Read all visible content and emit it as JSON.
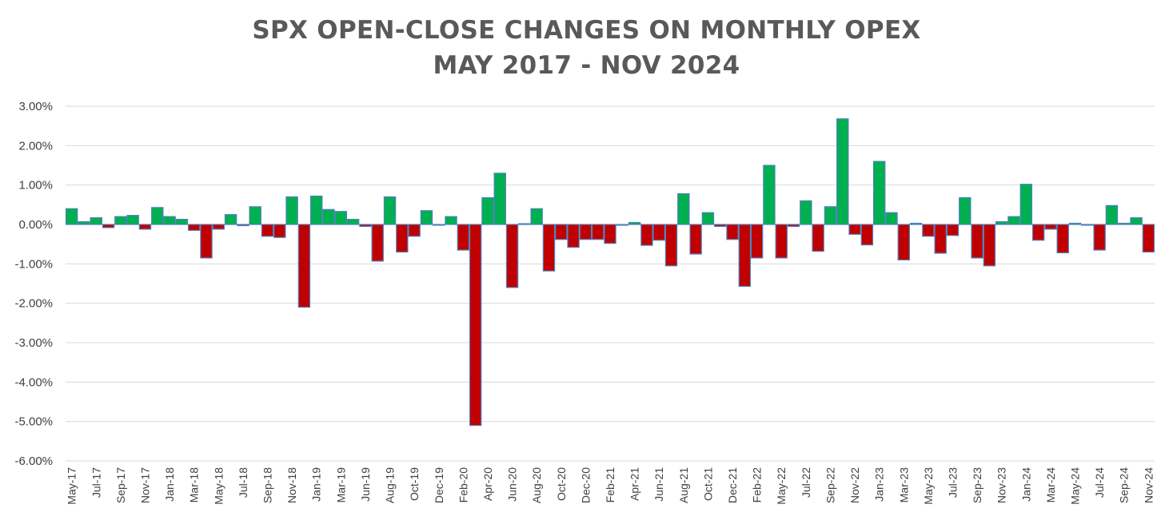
{
  "chart_data": {
    "type": "bar",
    "title": "SPX OPEN-CLOSE CHANGES ON MONTHLY OPEX",
    "subtitle": "MAY 2017 - NOV 2024",
    "xlabel": "",
    "ylabel": "",
    "ylim": [
      -0.06,
      0.03
    ],
    "y_ticks": [
      "3.00%",
      "2.00%",
      "1.00%",
      "0.00%",
      "-1.00%",
      "-2.00%",
      "-3.00%",
      "-4.00%",
      "-5.00%",
      "-6.00%"
    ],
    "grid": true,
    "legend": "none",
    "colors": {
      "positive": "#00b050",
      "negative": "#c00000",
      "bar_outline": "#4f81bd",
      "grid": "#d9d9d9",
      "text": "#404040",
      "title": "#595959"
    },
    "categories": [
      "May-17",
      "Jun-17",
      "Jul-17",
      "Aug-17",
      "Sep-17",
      "Oct-17",
      "Nov-17",
      "Dec-17",
      "Jan-18",
      "Feb-18",
      "Mar-18",
      "Apr-18",
      "May-18",
      "Jun-18",
      "Jul-18",
      "Aug-18",
      "Sep-18",
      "Oct-18",
      "Nov-18",
      "Dec-18",
      "Jan-19",
      "Feb-19",
      "Mar-19",
      "Apr-19",
      "Jun-19",
      "Jul-19",
      "Aug-19",
      "Sep-19",
      "Oct-19",
      "Nov-19",
      "Dec-19",
      "Jan-20",
      "Feb-20",
      "Mar-20",
      "Apr-20",
      "May-20",
      "Jun-20",
      "Jul-20",
      "Aug-20",
      "Sep-20",
      "Oct-20",
      "Nov-20",
      "Dec-20",
      "Jan-21",
      "Feb-21",
      "Mar-21",
      "Apr-21",
      "May-21",
      "Jun-21",
      "Jul-21",
      "Aug-21",
      "Sep-21",
      "Oct-21",
      "Nov-21",
      "Dec-21",
      "Jan-22",
      "Feb-22",
      "Mar-22",
      "May-22",
      "Jun-22",
      "Jul-22",
      "Aug-22",
      "Sep-22",
      "Oct-22",
      "Nov-22",
      "Dec-22",
      "Jan-23",
      "Feb-23",
      "Mar-23",
      "Apr-23",
      "May-23",
      "Jun-23",
      "Jul-23",
      "Aug-23",
      "Sep-23",
      "Oct-23",
      "Nov-23",
      "Dec-23",
      "Jan-24",
      "Feb-24",
      "Mar-24",
      "Apr-24",
      "May-24",
      "Jun-24",
      "Jul-24",
      "Aug-24",
      "Sep-24",
      "Oct-24",
      "Nov-24"
    ],
    "tick_labels": [
      "May-17",
      "Jul-17",
      "Sep-17",
      "Nov-17",
      "Jan-18",
      "Mar-18",
      "May-18",
      "Jul-18",
      "Sep-18",
      "Nov-18",
      "Jan-19",
      "Mar-19",
      "Jun-19",
      "Aug-19",
      "Oct-19",
      "Dec-19",
      "Feb-20",
      "Apr-20",
      "Jun-20",
      "Aug-20",
      "Oct-20",
      "Dec-20",
      "Feb-21",
      "Apr-21",
      "Jun-21",
      "Aug-21",
      "Oct-21",
      "Dec-21",
      "Feb-22",
      "May-22",
      "Jul-22",
      "Sep-22",
      "Nov-22",
      "Jan-23",
      "Mar-23",
      "May-23",
      "Jul-23",
      "Sep-23",
      "Nov-23",
      "Jan-24",
      "Mar-24",
      "May-24",
      "Jul-24",
      "Sep-24",
      "Nov-24"
    ],
    "values": [
      0.004,
      0.0007,
      0.0017,
      -0.0008,
      0.002,
      0.0023,
      -0.0012,
      0.0043,
      0.002,
      0.0013,
      -0.0015,
      -0.0085,
      -0.0012,
      0.0025,
      -0.0003,
      0.0045,
      -0.003,
      -0.0033,
      0.007,
      -0.021,
      0.0072,
      0.0038,
      0.0033,
      0.0013,
      -0.0005,
      -0.0093,
      0.007,
      -0.007,
      -0.003,
      0.0035,
      -0.0002,
      0.002,
      -0.0065,
      -0.051,
      0.0068,
      0.013,
      -0.016,
      0.0002,
      0.004,
      -0.0118,
      -0.0038,
      -0.0058,
      -0.0038,
      -0.0038,
      -0.0048,
      -0.0002,
      0.0005,
      -0.0053,
      -0.004,
      -0.0105,
      0.0078,
      -0.0075,
      0.003,
      -0.0005,
      -0.0038,
      -0.0157,
      -0.0085,
      0.015,
      -0.0085,
      -0.0005,
      0.006,
      -0.0068,
      0.0045,
      0.0268,
      -0.0025,
      -0.0052,
      0.016,
      0.003,
      -0.009,
      0.0003,
      -0.003,
      -0.0073,
      -0.0028,
      0.0068,
      -0.0085,
      -0.0105,
      0.0007,
      0.002,
      0.0102,
      -0.004,
      -0.0012,
      -0.0072,
      0.0003,
      -0.0002,
      -0.0065,
      0.0048,
      0.0003,
      0.0017,
      -0.007
    ]
  }
}
